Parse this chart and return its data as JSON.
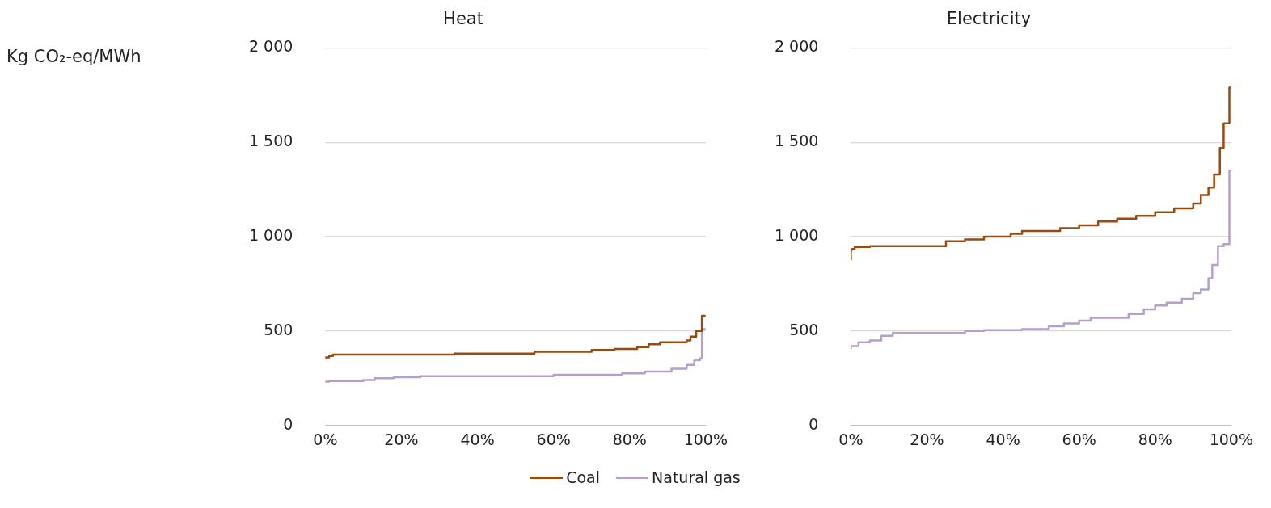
{
  "chart_data": [
    {
      "type": "step",
      "title": "Heat",
      "ylabel": "Kg CO₂-eq/MWh",
      "xlim": [
        0,
        100
      ],
      "xticks": [
        {
          "value": 0,
          "label": "0%"
        },
        {
          "value": 20,
          "label": "20%"
        },
        {
          "value": 40,
          "label": "40%"
        },
        {
          "value": 60,
          "label": "60%"
        },
        {
          "value": 80,
          "label": "80%"
        },
        {
          "value": 100,
          "label": "100%"
        }
      ],
      "ylim": [
        0,
        2000
      ],
      "yticks": [
        {
          "value": 0,
          "label": "0"
        },
        {
          "value": 500,
          "label": "500"
        },
        {
          "value": 1000,
          "label": "1 000"
        },
        {
          "value": 1500,
          "label": "1 500"
        },
        {
          "value": 2000,
          "label": "2 000"
        }
      ],
      "grid": "y",
      "legend": "bottom",
      "marker": "none",
      "series": [
        {
          "name": "Coal",
          "color": "#9c4a0c",
          "x": [
            0,
            1,
            2,
            34,
            55,
            70,
            76,
            82,
            85,
            88,
            95,
            96,
            97.5,
            99,
            100
          ],
          "values": [
            350,
            360,
            368,
            375,
            380,
            390,
            400,
            405,
            415,
            430,
            440,
            450,
            470,
            500,
            580
          ]
        },
        {
          "name": "Natural gas",
          "color": "#b4a0cc",
          "x": [
            0,
            1,
            10,
            13,
            18,
            25,
            60,
            78,
            84,
            91,
            95,
            97,
            98.5,
            99,
            100
          ],
          "values": [
            225,
            232,
            235,
            240,
            250,
            255,
            260,
            268,
            275,
            285,
            300,
            320,
            345,
            355,
            510
          ]
        }
      ]
    },
    {
      "type": "step",
      "title": "Electricity",
      "xlim": [
        0,
        100
      ],
      "xticks": [
        {
          "value": 0,
          "label": "0%"
        },
        {
          "value": 20,
          "label": "20%"
        },
        {
          "value": 40,
          "label": "40%"
        },
        {
          "value": 60,
          "label": "60%"
        },
        {
          "value": 80,
          "label": "80%"
        },
        {
          "value": 100,
          "label": "100%"
        }
      ],
      "ylim": [
        0,
        2000
      ],
      "yticks": [
        {
          "value": 0,
          "label": "0"
        },
        {
          "value": 500,
          "label": "500"
        },
        {
          "value": 1000,
          "label": "1 000"
        },
        {
          "value": 1500,
          "label": "1 500"
        },
        {
          "value": 2000,
          "label": "2 000"
        }
      ],
      "grid": "y",
      "marker": "none",
      "series": [
        {
          "color": "#9c4a0c",
          "x": [
            0,
            0.3,
            1,
            5,
            25,
            30,
            35,
            42,
            45,
            55,
            60,
            65,
            70,
            75,
            80,
            85,
            90,
            92,
            94,
            95.5,
            97,
            98,
            99.5,
            100
          ],
          "values": [
            875,
            930,
            935,
            945,
            950,
            975,
            985,
            1000,
            1015,
            1030,
            1045,
            1060,
            1080,
            1095,
            1110,
            1130,
            1150,
            1175,
            1220,
            1260,
            1330,
            1470,
            1600,
            1790
          ]
        },
        {
          "color": "#b4a0cc",
          "x": [
            0,
            2,
            5,
            8,
            11,
            30,
            35,
            45,
            52,
            56,
            60,
            63,
            73,
            77,
            80,
            83,
            87,
            90,
            92,
            94,
            95,
            96.5,
            98,
            99.5,
            100
          ],
          "values": [
            405,
            420,
            440,
            450,
            475,
            490,
            500,
            505,
            510,
            525,
            540,
            555,
            570,
            590,
            615,
            635,
            650,
            670,
            700,
            720,
            780,
            850,
            950,
            960,
            1350
          ]
        }
      ]
    }
  ]
}
